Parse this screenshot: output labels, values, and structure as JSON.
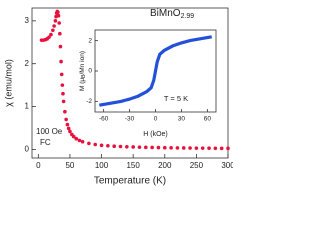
{
  "chart_data": [
    {
      "type": "scatter",
      "title": "BiMnO",
      "title_subscript": "2.99",
      "xlabel": "Temperature (K)",
      "ylabel": "χ (emu/mol)",
      "annotations": [
        "100 Oe",
        "FC"
      ],
      "x": [
        5,
        8,
        11,
        14,
        17,
        20,
        23,
        25,
        27,
        28,
        29,
        30,
        31,
        32,
        33,
        34,
        35,
        36,
        37,
        38,
        39,
        40,
        42,
        44,
        46,
        48,
        50,
        53,
        56,
        60,
        65,
        70,
        80,
        90,
        100,
        110,
        120,
        130,
        140,
        150,
        160,
        170,
        180,
        190,
        200,
        210,
        220,
        230,
        240,
        250,
        260,
        270,
        280,
        290,
        300
      ],
      "values": [
        2.55,
        2.55,
        2.56,
        2.58,
        2.62,
        2.68,
        2.78,
        2.88,
        3.0,
        3.1,
        3.18,
        3.22,
        3.2,
        3.12,
        2.95,
        2.7,
        2.4,
        2.05,
        1.75,
        1.5,
        1.3,
        1.12,
        0.88,
        0.7,
        0.58,
        0.49,
        0.42,
        0.35,
        0.3,
        0.25,
        0.21,
        0.18,
        0.14,
        0.115,
        0.095,
        0.085,
        0.075,
        0.068,
        0.062,
        0.057,
        0.053,
        0.049,
        0.046,
        0.043,
        0.04,
        0.038,
        0.036,
        0.034,
        0.032,
        0.03,
        0.029,
        0.028,
        0.027,
        0.026,
        0.025
      ],
      "color": "#e8103c",
      "xlim": [
        -10,
        300
      ],
      "ylim": [
        -0.2,
        3.3
      ],
      "xticks": [
        0,
        50,
        100,
        150,
        200,
        250,
        300
      ],
      "yticks": [
        0,
        1,
        2,
        3
      ]
    },
    {
      "type": "line",
      "ylabel": [
        "M (μ",
        "B",
        "/Mn ion)"
      ],
      "xlabel": "H (kOe)",
      "annotations": [
        "T = 5 K"
      ],
      "x": [
        -65,
        -50,
        -40,
        -30,
        -20,
        -10,
        -5,
        -2,
        0,
        2,
        5,
        10,
        20,
        30,
        40,
        50,
        65
      ],
      "values": [
        -2.25,
        -2.1,
        -2.0,
        -1.85,
        -1.65,
        -1.35,
        -1.1,
        -0.6,
        0,
        0.6,
        1.1,
        1.35,
        1.65,
        1.85,
        2.0,
        2.1,
        2.25
      ],
      "color": "#2250d8",
      "xlim": [
        -70,
        70
      ],
      "ylim": [
        -2.7,
        2.7
      ],
      "xticks": [
        -60,
        -30,
        0,
        30,
        60
      ],
      "yticks": [
        -2,
        0,
        2
      ]
    }
  ]
}
